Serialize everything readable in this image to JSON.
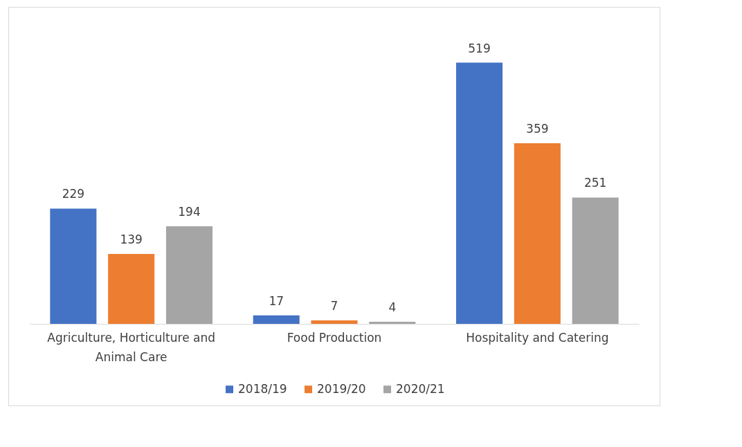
{
  "chart_data": {
    "type": "bar",
    "categories": [
      "Agriculture, Horticulture and Animal Care",
      "Food Production",
      "Hospitality and Catering"
    ],
    "series": [
      {
        "name": "2018/19",
        "color": "#4472c4",
        "values": [
          229,
          17,
          519
        ]
      },
      {
        "name": "2019/20",
        "color": "#ed7d31",
        "values": [
          139,
          7,
          359
        ]
      },
      {
        "name": "2020/21",
        "color": "#a5a5a5",
        "values": [
          194,
          4,
          251
        ]
      }
    ],
    "data_labels": true,
    "grid": false,
    "legend": "bottom"
  }
}
